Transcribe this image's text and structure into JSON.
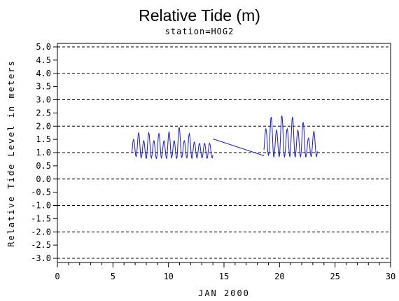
{
  "chart_data": {
    "type": "line",
    "title": "Relative Tide (m)",
    "subtitle": "station=HOG2",
    "xlabel": "JAN 2000",
    "ylabel": "Relative Tide Level in meters",
    "xlim": [
      0,
      30
    ],
    "ylim": [
      -3.0,
      5.0
    ],
    "x_ticks": [
      "0",
      "5",
      "10",
      "15",
      "20",
      "25",
      "30"
    ],
    "y_ticks": [
      "-3.0",
      "-2.5",
      "-2.0",
      "-1.5",
      "-1.0",
      "-0.5",
      "0.0",
      "0.5",
      "1.0",
      "1.5",
      "2.0",
      "2.5",
      "3.0",
      "3.5",
      "4.0",
      "4.5",
      "5.0"
    ],
    "grid_y": [
      -3.0,
      -2.0,
      -1.0,
      0.0,
      1.0,
      2.0,
      3.0,
      4.0,
      5.0
    ],
    "grid": "dashed horizontal",
    "line_color": "#1a1acc",
    "series": [
      {
        "segments": [
          {
            "x_start": 6.7,
            "x_end": 14.0,
            "highs": [
              1.5,
              1.75,
              1.45,
              1.75,
              1.45,
              1.72,
              1.45,
              1.78,
              1.45,
              1.95,
              1.45,
              1.72,
              1.4,
              1.35,
              1.35,
              1.35
            ],
            "lows": [
              0.85,
              0.8,
              0.78,
              0.8,
              0.78,
              0.8,
              0.78,
              0.8,
              0.78,
              0.8,
              0.8,
              0.78,
              0.8,
              0.8,
              0.78,
              0.8
            ]
          },
          {
            "x": [
              14.0,
              18.6
            ],
            "y": [
              1.52,
              0.88
            ]
          },
          {
            "x_start": 18.6,
            "x_end": 23.4,
            "highs": [
              1.9,
              2.35,
              1.85,
              2.4,
              1.9,
              2.35,
              1.85,
              2.15,
              1.55,
              1.8
            ],
            "lows": [
              0.9,
              0.82,
              0.85,
              0.82,
              0.85,
              0.82,
              0.85,
              0.82,
              0.85,
              0.85
            ]
          }
        ]
      }
    ]
  }
}
